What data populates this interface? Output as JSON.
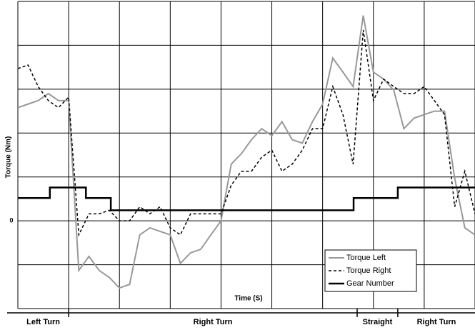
{
  "chart_data": {
    "type": "line",
    "y_label": "Torque (Nm)",
    "x_label": "Time (S)",
    "xlim": [
      0,
      90
    ],
    "ylim": [
      -200,
      500
    ],
    "yticks": [
      0
    ],
    "xgrid": [
      0,
      10,
      20,
      30,
      40,
      50,
      60,
      70,
      80,
      90
    ],
    "ygrid": [
      -200,
      -100,
      0,
      100,
      200,
      300,
      400,
      500
    ],
    "grid": true,
    "legend": "lower right",
    "series": [
      {
        "name": "Torque Left",
        "color": "#999999",
        "dash": false,
        "width": 2,
        "x": [
          0,
          2,
          4,
          6,
          8,
          10,
          12,
          14,
          16,
          18,
          20,
          22,
          24,
          26,
          28,
          30,
          32,
          34,
          36,
          38,
          40,
          42,
          44,
          46,
          48,
          50,
          52,
          54,
          56,
          58,
          60,
          62,
          64,
          66,
          68,
          70,
          72,
          74,
          76,
          78,
          80,
          82,
          84,
          86,
          88,
          90
        ],
        "values": [
          258,
          266,
          274,
          290,
          274,
          274,
          -113,
          -81,
          -113,
          -129,
          -153,
          -145,
          -32,
          -16,
          -24,
          -32,
          -97,
          -73,
          -65,
          -32,
          0,
          129,
          153,
          185,
          210,
          194,
          226,
          185,
          177,
          226,
          266,
          371,
          339,
          306,
          468,
          339,
          323,
          298,
          210,
          234,
          242,
          250,
          250,
          97,
          -16,
          -32
        ]
      },
      {
        "name": "Torque Right",
        "color": "#000000",
        "dash": true,
        "width": 1.5,
        "x": [
          0,
          2,
          4,
          6,
          8,
          10,
          12,
          14,
          16,
          18,
          20,
          22,
          24,
          26,
          28,
          30,
          32,
          34,
          36,
          38,
          40,
          42,
          44,
          46,
          48,
          50,
          52,
          54,
          56,
          58,
          60,
          62,
          64,
          66,
          68,
          70,
          72,
          74,
          76,
          78,
          80,
          82,
          84,
          86,
          88,
          90
        ],
        "values": [
          347,
          355,
          306,
          274,
          258,
          282,
          -32,
          16,
          16,
          24,
          0,
          0,
          32,
          16,
          32,
          -16,
          -32,
          16,
          16,
          16,
          16,
          81,
          113,
          113,
          145,
          161,
          113,
          129,
          161,
          210,
          210,
          306,
          242,
          129,
          435,
          274,
          323,
          306,
          290,
          290,
          306,
          274,
          242,
          32,
          113,
          16
        ]
      },
      {
        "name": "Gear Number",
        "color": "#000000",
        "dash": false,
        "width": 2.5,
        "x": [
          0,
          6.3,
          6.3,
          13.4,
          13.4,
          18.3,
          18.3,
          66.1,
          66.1,
          74.8,
          74.8,
          90
        ],
        "values": [
          52,
          52,
          76,
          76,
          52,
          52,
          24,
          24,
          52,
          52,
          76,
          76
        ]
      }
    ],
    "segments": [
      {
        "label": "Left Turn",
        "start": 0,
        "end": 10
      },
      {
        "label": "Right Turn",
        "start": 10,
        "end": 66.8
      },
      {
        "label": "Straight",
        "start": 66.8,
        "end": 74.8
      },
      {
        "label": "Right  Turn",
        "start": 74.8,
        "end": 90
      }
    ]
  }
}
